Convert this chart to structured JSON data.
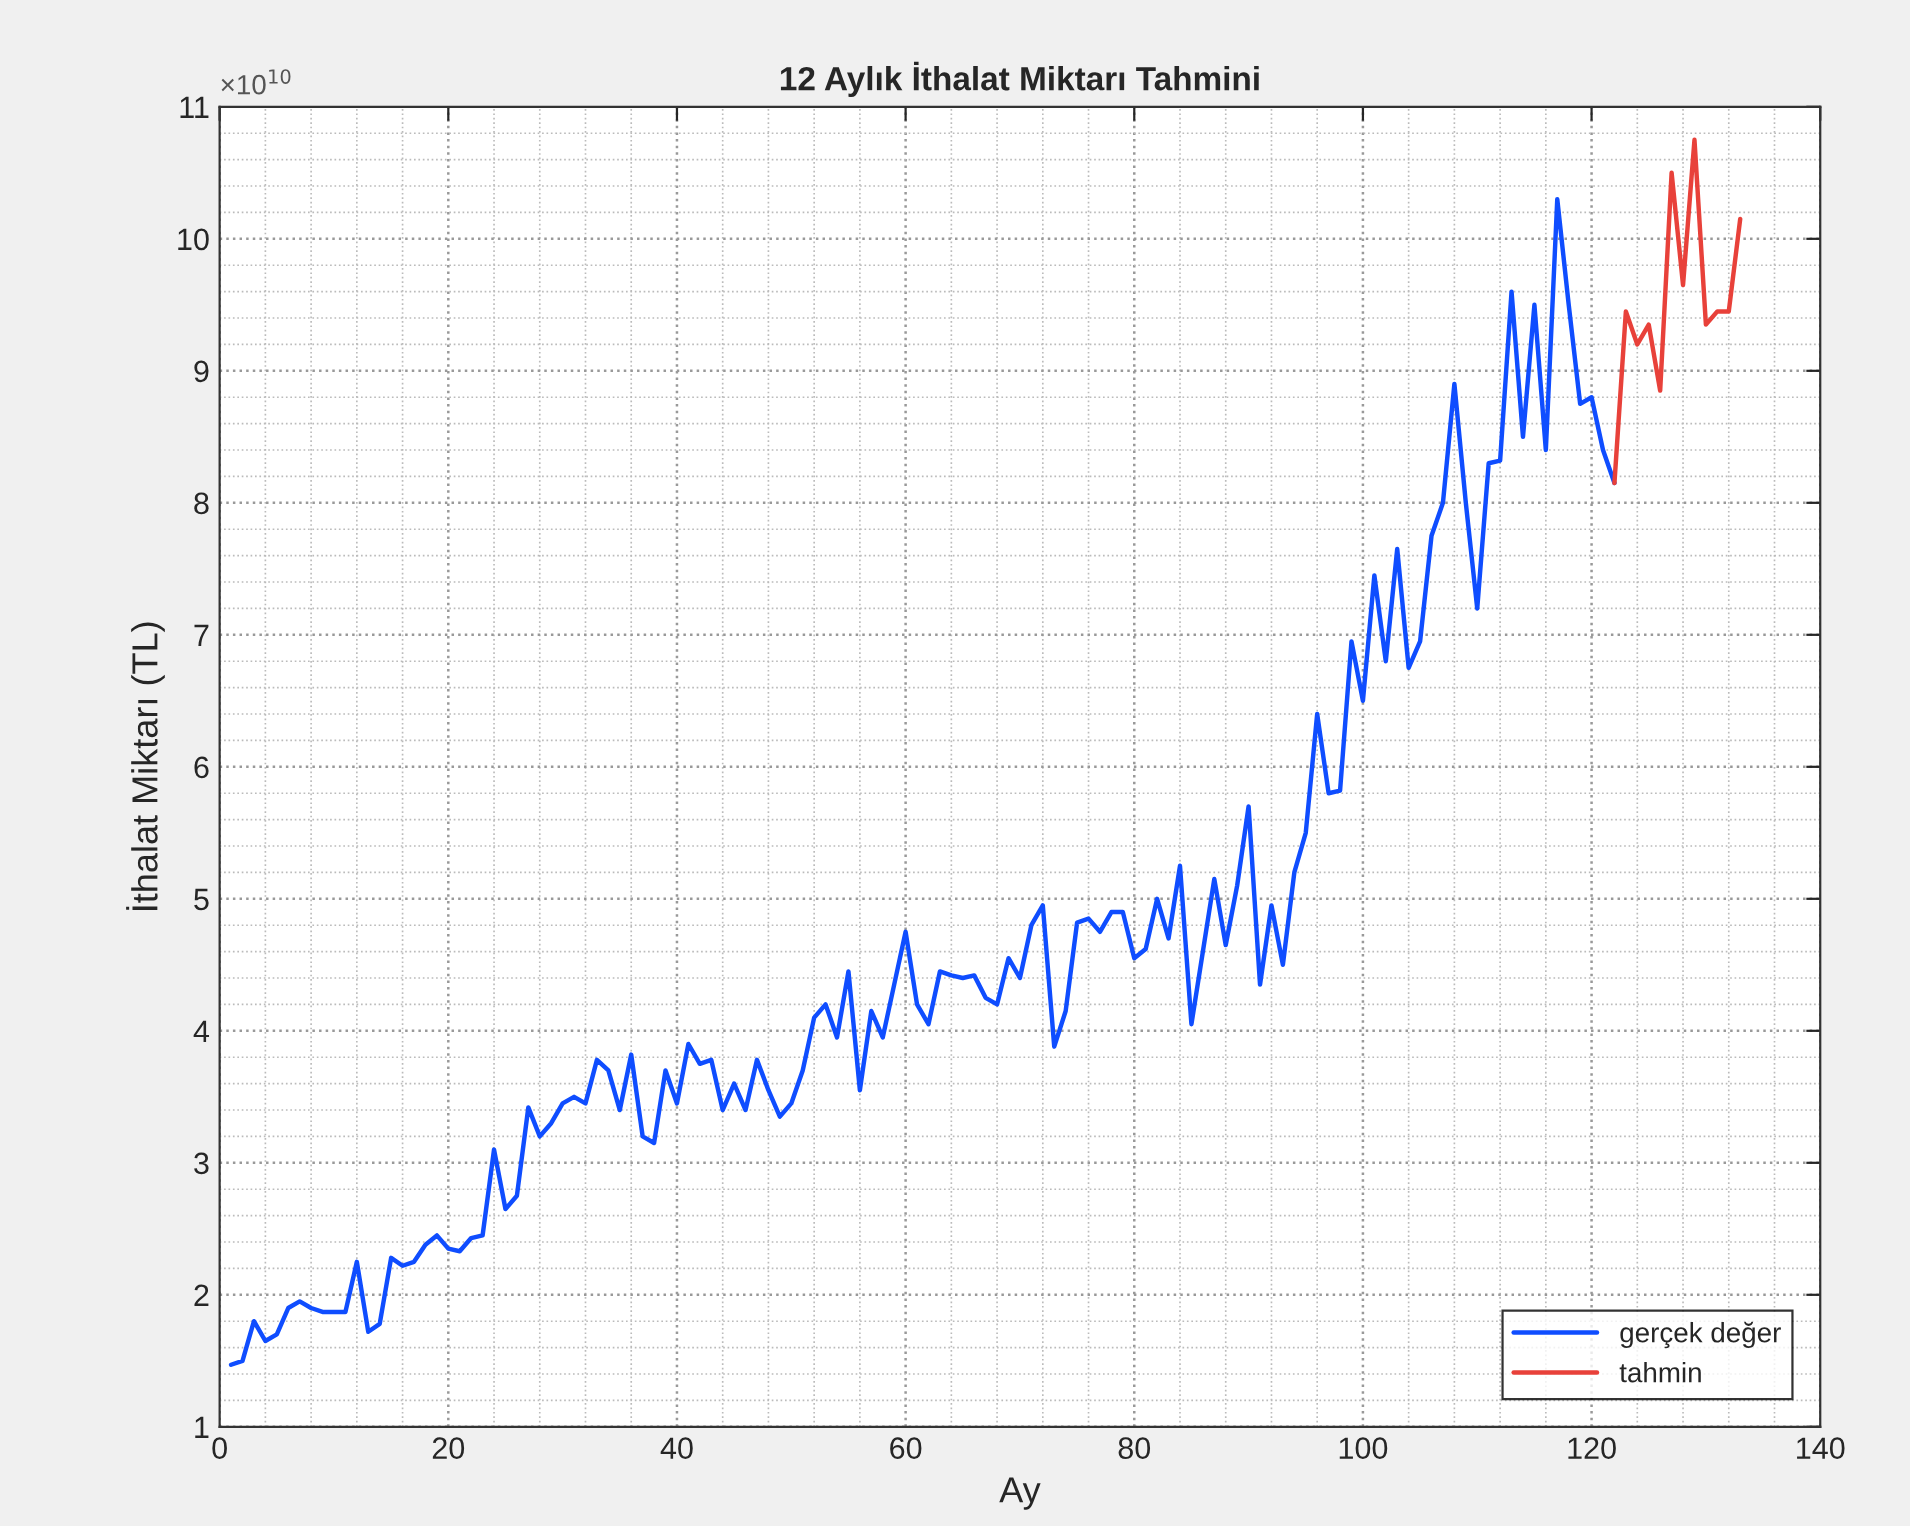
{
  "chart_data": {
    "type": "line",
    "title": "12 Aylık İthalat Miktarı Tahmini",
    "xlabel": "Ay",
    "ylabel": "İthalat Miktarı (TL)",
    "annotations": [
      "×10$^{10}$"
    ],
    "xlim": [
      0,
      140
    ],
    "xticks": [
      0,
      20,
      40,
      60,
      80,
      100,
      120,
      140
    ],
    "ylim": [
      1,
      11
    ],
    "yticks": [
      1,
      2,
      3,
      4,
      5,
      6,
      7,
      8,
      9,
      10,
      11
    ],
    "grid": true,
    "legend": "bottom right",
    "line_style": "solid",
    "marker": "none",
    "series": [
      {
        "name": "gerçek değer",
        "color": "#0f4dff",
        "x": [
          1,
          2,
          3,
          4,
          5,
          6,
          7,
          8,
          9,
          10,
          11,
          12,
          13,
          14,
          15,
          16,
          17,
          18,
          19,
          20,
          21,
          22,
          23,
          24,
          25,
          26,
          27,
          28,
          29,
          30,
          31,
          32,
          33,
          34,
          35,
          36,
          37,
          38,
          39,
          40,
          41,
          42,
          43,
          44,
          45,
          46,
          47,
          48,
          49,
          50,
          51,
          52,
          53,
          54,
          55,
          56,
          57,
          58,
          59,
          60,
          61,
          62,
          63,
          64,
          65,
          66,
          67,
          68,
          69,
          70,
          71,
          72,
          73,
          74,
          75,
          76,
          77,
          78,
          79,
          80,
          81,
          82,
          83,
          84,
          85,
          86,
          87,
          88,
          89,
          90,
          91,
          92,
          93,
          94,
          95,
          96,
          97,
          98,
          99,
          100,
          101,
          102,
          103,
          104,
          105,
          106,
          107,
          108,
          109,
          110,
          111,
          112,
          113,
          114,
          115,
          116,
          117,
          118,
          119,
          120,
          121,
          122
        ],
        "values": [
          1.47,
          1.5,
          1.8,
          1.65,
          1.7,
          1.9,
          1.95,
          1.9,
          1.87,
          1.87,
          1.87,
          2.25,
          1.72,
          1.78,
          2.28,
          2.22,
          2.25,
          2.38,
          2.45,
          2.35,
          2.33,
          2.43,
          2.45,
          3.1,
          2.65,
          2.75,
          3.42,
          3.2,
          3.3,
          3.45,
          3.5,
          3.45,
          3.78,
          3.7,
          3.4,
          3.82,
          3.2,
          3.15,
          3.7,
          3.45,
          3.9,
          3.75,
          3.78,
          3.4,
          3.6,
          3.4,
          3.78,
          3.55,
          3.35,
          3.45,
          3.7,
          4.1,
          4.2,
          3.95,
          4.45,
          3.55,
          4.15,
          3.95,
          4.35,
          4.75,
          4.2,
          4.05,
          4.45,
          4.42,
          4.4,
          4.42,
          4.25,
          4.2,
          4.55,
          4.4,
          4.8,
          4.95,
          3.88,
          4.15,
          4.82,
          4.85,
          4.75,
          4.9,
          4.9,
          4.55,
          4.62,
          5.0,
          4.7,
          5.25,
          4.05,
          4.6,
          5.15,
          4.65,
          5.1,
          5.7,
          4.35,
          4.95,
          4.5,
          5.2,
          5.5,
          6.4,
          5.8,
          5.82,
          6.95,
          6.5,
          7.45,
          6.8,
          7.65,
          6.75,
          6.95,
          7.75,
          8.0,
          8.9,
          8.0,
          7.2,
          8.3,
          8.32,
          9.6,
          8.5,
          9.5,
          8.4,
          10.3,
          9.5,
          8.75,
          8.8,
          8.4,
          8.15
        ]
      },
      {
        "name": "tahmin",
        "color": "#e8413a",
        "x": [
          122,
          123,
          124,
          125,
          126,
          127,
          128,
          129,
          130,
          131,
          132,
          133
        ],
        "values": [
          8.15,
          9.45,
          9.2,
          9.35,
          8.85,
          10.5,
          9.65,
          10.75,
          9.35,
          9.45,
          9.45,
          10.15
        ]
      }
    ]
  }
}
